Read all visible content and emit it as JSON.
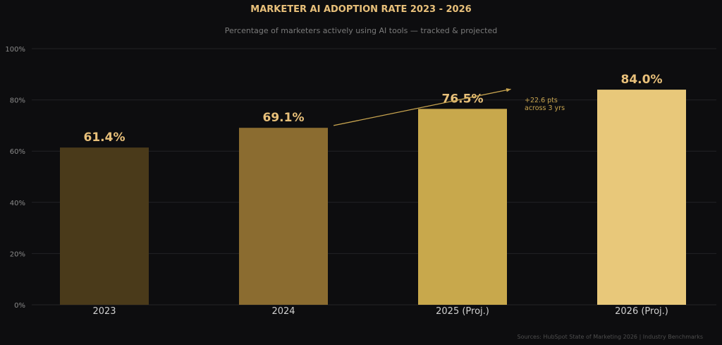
{
  "chart_data": {
    "type": "bar",
    "title": "MARKETER AI ADOPTION RATE  2023 - 2026",
    "subtitle": "Percentage of marketers actively using AI tools — tracked & projected",
    "categories": [
      "2023",
      "2024",
      "2025 (Proj.)",
      "2026 (Proj.)"
    ],
    "values": [
      61.4,
      69.1,
      76.5,
      84.0
    ],
    "value_labels": [
      "61.4%",
      "69.1%",
      "76.5%",
      "84.0%"
    ],
    "bar_colors": [
      "#4a3a1a",
      "#8b6c30",
      "#c8a84c",
      "#e8c87a"
    ],
    "ylim": [
      0,
      100
    ],
    "yticks": [
      0,
      20,
      40,
      60,
      80,
      100
    ],
    "ytick_labels": [
      "0%",
      "20%",
      "40%",
      "60%",
      "80%",
      "100%"
    ],
    "xlabel": "",
    "ylabel": "",
    "grid": true,
    "annotation": {
      "lines": [
        "+22.6 pts",
        "across 3 yrs"
      ],
      "arrow_from": {
        "x_index": 1.28,
        "y": 70.0
      },
      "arrow_to": {
        "x_index": 2.27,
        "y": 84.2
      }
    },
    "source": "Sources: HubSpot State of Marketing 2026 | Industry Benchmarks"
  },
  "colors": {
    "background": "#0d0d0f",
    "title": "#e8c07a",
    "subtitle": "#7a7a7a",
    "tick": "#8a8a8a",
    "category": "#cfcfcf",
    "grid": "#232326",
    "value_label": "#e8c07a",
    "annotation": "#c9a550",
    "source": "#4e4e4e"
  }
}
